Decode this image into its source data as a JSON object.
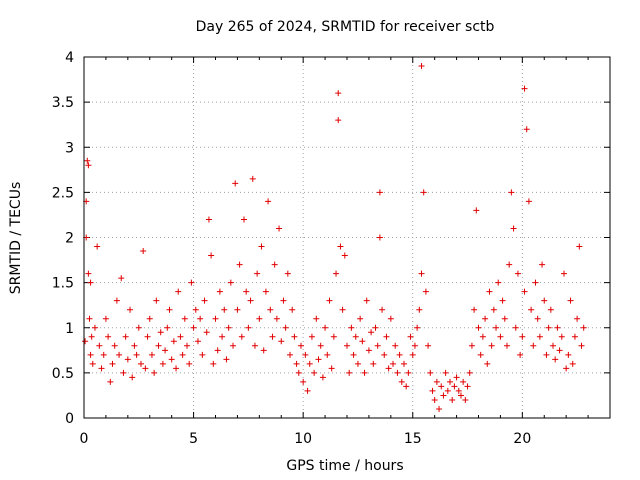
{
  "chart_data": {
    "type": "scatter",
    "title": "Day 265 of 2024, SRMTID for receiver sctb",
    "xlabel": "GPS time / hours",
    "ylabel": "SRMTID / TECUs",
    "xlim": [
      0,
      24
    ],
    "ylim": [
      0,
      4
    ],
    "xticks": [
      0,
      5,
      10,
      15,
      20
    ],
    "xtick_labels": [
      "0",
      "5",
      "10",
      "15",
      "20"
    ],
    "yticks": [
      0,
      0.5,
      1,
      1.5,
      2,
      2.5,
      3,
      3.5,
      4
    ],
    "ytick_labels": [
      "0",
      "0.5",
      "1",
      "1.5",
      "2",
      "2.5",
      "3",
      "3.5",
      "4"
    ],
    "grid": true,
    "marker": "+",
    "color": "#e00000",
    "series": [
      {
        "name": "SRMTID",
        "x": [
          0.05,
          0.1,
          0.1,
          0.15,
          0.2,
          0.2,
          0.25,
          0.3,
          0.3,
          0.35,
          0.4,
          0.5,
          0.6,
          0.7,
          0.8,
          0.9,
          1.0,
          1.1,
          1.2,
          1.3,
          1.4,
          1.5,
          1.6,
          1.7,
          1.8,
          1.9,
          2.0,
          2.1,
          2.2,
          2.3,
          2.4,
          2.5,
          2.6,
          2.7,
          2.8,
          2.9,
          3.0,
          3.1,
          3.2,
          3.3,
          3.4,
          3.5,
          3.6,
          3.7,
          3.8,
          3.9,
          4.0,
          4.1,
          4.2,
          4.3,
          4.4,
          4.5,
          4.6,
          4.7,
          4.8,
          4.9,
          5.0,
          5.1,
          5.2,
          5.3,
          5.4,
          5.5,
          5.6,
          5.7,
          5.8,
          5.9,
          6.0,
          6.1,
          6.2,
          6.3,
          6.4,
          6.5,
          6.6,
          6.7,
          6.8,
          6.9,
          7.0,
          7.1,
          7.2,
          7.3,
          7.4,
          7.5,
          7.6,
          7.7,
          7.8,
          7.9,
          8.0,
          8.1,
          8.2,
          8.3,
          8.4,
          8.5,
          8.6,
          8.7,
          8.8,
          8.9,
          9.0,
          9.1,
          9.2,
          9.3,
          9.4,
          9.5,
          9.6,
          9.7,
          9.8,
          9.9,
          10.0,
          10.1,
          10.2,
          10.3,
          10.4,
          10.5,
          10.6,
          10.7,
          10.8,
          10.9,
          11.0,
          11.1,
          11.2,
          11.3,
          11.4,
          11.5,
          11.6,
          11.6,
          11.7,
          11.8,
          11.9,
          12.0,
          12.1,
          12.2,
          12.3,
          12.4,
          12.5,
          12.6,
          12.7,
          12.8,
          12.9,
          13.0,
          13.1,
          13.2,
          13.3,
          13.4,
          13.5,
          13.5,
          13.6,
          13.7,
          13.8,
          13.9,
          14.0,
          14.1,
          14.2,
          14.3,
          14.4,
          14.5,
          14.6,
          14.7,
          14.8,
          14.9,
          15.0,
          15.1,
          15.2,
          15.3,
          15.4,
          15.4,
          15.5,
          15.6,
          15.7,
          15.8,
          15.9,
          16.0,
          16.1,
          16.2,
          16.3,
          16.4,
          16.5,
          16.6,
          16.7,
          16.8,
          16.9,
          17.0,
          17.1,
          17.2,
          17.3,
          17.4,
          17.5,
          17.6,
          17.7,
          17.8,
          17.9,
          18.0,
          18.1,
          18.2,
          18.3,
          18.4,
          18.5,
          18.6,
          18.7,
          18.8,
          18.9,
          19.0,
          19.1,
          19.2,
          19.3,
          19.4,
          19.5,
          19.6,
          19.7,
          19.8,
          19.9,
          20.0,
          20.1,
          20.1,
          20.2,
          20.3,
          20.4,
          20.5,
          20.6,
          20.7,
          20.8,
          20.9,
          21.0,
          21.1,
          21.2,
          21.3,
          21.4,
          21.5,
          21.6,
          21.7,
          21.8,
          21.9,
          22.0,
          22.1,
          22.2,
          22.3,
          22.4,
          22.5,
          22.6,
          22.7,
          22.8
        ],
        "y": [
          0.85,
          2.4,
          2.0,
          2.85,
          1.6,
          2.8,
          1.1,
          0.7,
          1.5,
          0.9,
          0.6,
          1.0,
          1.9,
          0.8,
          0.55,
          0.7,
          1.1,
          0.9,
          0.4,
          0.6,
          0.8,
          1.3,
          0.7,
          1.55,
          0.5,
          0.9,
          0.65,
          1.2,
          0.45,
          0.8,
          0.7,
          1.0,
          0.6,
          1.85,
          0.55,
          0.9,
          1.1,
          0.7,
          0.5,
          1.3,
          0.8,
          0.95,
          0.6,
          0.75,
          1.0,
          1.2,
          0.65,
          0.85,
          0.55,
          1.4,
          0.9,
          0.7,
          1.1,
          0.8,
          0.6,
          1.5,
          1.0,
          1.2,
          0.85,
          1.1,
          0.7,
          1.3,
          0.95,
          2.2,
          1.8,
          0.6,
          1.1,
          0.75,
          1.4,
          0.9,
          1.2,
          0.65,
          1.0,
          1.5,
          0.8,
          2.6,
          1.2,
          1.7,
          0.9,
          2.2,
          1.4,
          1.0,
          1.3,
          2.65,
          0.8,
          1.6,
          1.1,
          1.9,
          0.75,
          1.4,
          2.4,
          1.2,
          0.9,
          1.7,
          1.1,
          2.1,
          0.85,
          1.3,
          1.0,
          1.6,
          0.7,
          1.2,
          0.9,
          0.6,
          0.5,
          0.8,
          0.4,
          0.7,
          0.3,
          0.6,
          0.9,
          0.5,
          1.1,
          0.65,
          0.8,
          0.45,
          1.0,
          0.7,
          1.3,
          0.55,
          0.9,
          1.6,
          3.6,
          3.3,
          1.9,
          1.2,
          1.8,
          0.8,
          0.5,
          1.0,
          0.7,
          0.9,
          0.6,
          1.1,
          0.85,
          0.5,
          1.3,
          0.75,
          0.95,
          0.6,
          1.0,
          0.8,
          2.5,
          2.0,
          1.2,
          0.7,
          0.9,
          0.55,
          1.1,
          0.6,
          0.8,
          0.5,
          0.7,
          0.4,
          0.6,
          0.35,
          0.5,
          0.9,
          0.7,
          0.8,
          1.0,
          1.2,
          1.6,
          3.9,
          2.5,
          1.4,
          0.8,
          0.5,
          0.3,
          0.2,
          0.4,
          0.1,
          0.35,
          0.25,
          0.5,
          0.3,
          0.4,
          0.2,
          0.35,
          0.45,
          0.3,
          0.25,
          0.4,
          0.2,
          0.35,
          0.5,
          0.8,
          1.2,
          2.3,
          1.0,
          0.7,
          0.9,
          1.1,
          0.6,
          1.4,
          0.8,
          1.2,
          1.0,
          1.5,
          0.9,
          1.3,
          1.1,
          0.8,
          1.7,
          2.5,
          2.1,
          1.0,
          1.6,
          0.7,
          0.9,
          1.4,
          3.65,
          3.2,
          2.4,
          1.2,
          0.8,
          1.5,
          1.1,
          0.9,
          1.7,
          1.3,
          0.7,
          1.0,
          1.2,
          0.8,
          0.65,
          1.0,
          0.75,
          0.9,
          1.6,
          0.55,
          0.7,
          1.3,
          0.6,
          0.9,
          1.1,
          1.9,
          0.8,
          1.0
        ],
        "annotations_note": ""
      }
    ]
  }
}
